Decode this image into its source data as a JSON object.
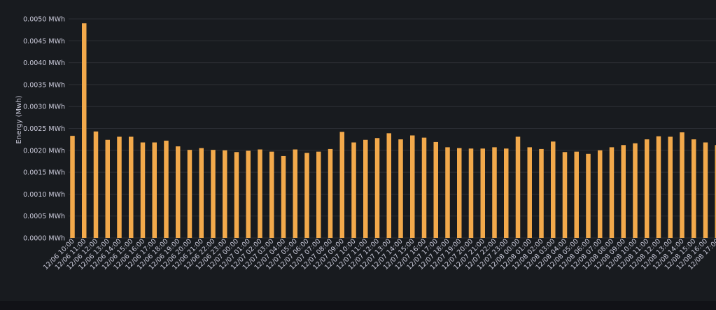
{
  "chart_data": {
    "type": "bar",
    "ylabel": "Energy (Mwh)",
    "ylim": [
      0,
      0.005
    ],
    "y_ticks": [
      "0.0000 MWh",
      "0.0005 MWh",
      "0.0010 MWh",
      "0.0015 MWh",
      "0.0020 MWh",
      "0.0025 MWh",
      "0.0030 MWh",
      "0.0035 MWh",
      "0.0040 MWh",
      "0.0045 MWh",
      "0.0050 MWh"
    ],
    "grid": true,
    "bar_color": "#f2a94b",
    "categories": [
      "12/06 10:00",
      "12/06 11:00",
      "12/06 12:00",
      "12/06 13:00",
      "12/06 14:00",
      "12/06 15:00",
      "12/06 16:00",
      "12/06 17:00",
      "12/06 18:00",
      "12/06 19:00",
      "12/06 20:00",
      "12/06 21:00",
      "12/06 22:00",
      "12/06 23:00",
      "12/07 00:00",
      "12/07 01:00",
      "12/07 02:00",
      "12/07 03:00",
      "12/07 04:00",
      "12/07 05:00",
      "12/07 06:00",
      "12/07 07:00",
      "12/07 08:00",
      "12/07 09:00",
      "12/07 10:00",
      "12/07 11:00",
      "12/07 12:00",
      "12/07 13:00",
      "12/07 14:00",
      "12/07 15:00",
      "12/07 16:00",
      "12/07 17:00",
      "12/07 18:00",
      "12/07 19:00",
      "12/07 20:00",
      "12/07 21:00",
      "12/07 22:00",
      "12/07 23:00",
      "12/08 00:00",
      "12/08 01:00",
      "12/08 02:00",
      "12/08 03:00",
      "12/08 04:00",
      "12/08 05:00",
      "12/08 06:00",
      "12/08 07:00",
      "12/08 08:00",
      "12/08 09:00",
      "12/08 10:00",
      "12/08 11:00",
      "12/08 12:00",
      "12/08 13:00",
      "12/08 14:00",
      "12/08 15:00",
      "12/08 16:00",
      "12/08 17:00"
    ],
    "values": [
      0.00233,
      0.0049,
      0.00243,
      0.00224,
      0.00231,
      0.00231,
      0.00218,
      0.00218,
      0.00222,
      0.00209,
      0.00201,
      0.00205,
      0.00201,
      0.002,
      0.00196,
      0.00199,
      0.00202,
      0.00197,
      0.00187,
      0.00202,
      0.00194,
      0.00197,
      0.00203,
      0.00242,
      0.00218,
      0.00224,
      0.00228,
      0.00239,
      0.00225,
      0.00234,
      0.00229,
      0.00219,
      0.00207,
      0.00205,
      0.00204,
      0.00204,
      0.00207,
      0.00204,
      0.00231,
      0.00207,
      0.00203,
      0.0022,
      0.00196,
      0.00197,
      0.00192,
      0.002,
      0.00207,
      0.00212,
      0.00216,
      0.00225,
      0.00232,
      0.00231,
      0.00241,
      0.00225,
      0.00218,
      0.00212
    ]
  }
}
